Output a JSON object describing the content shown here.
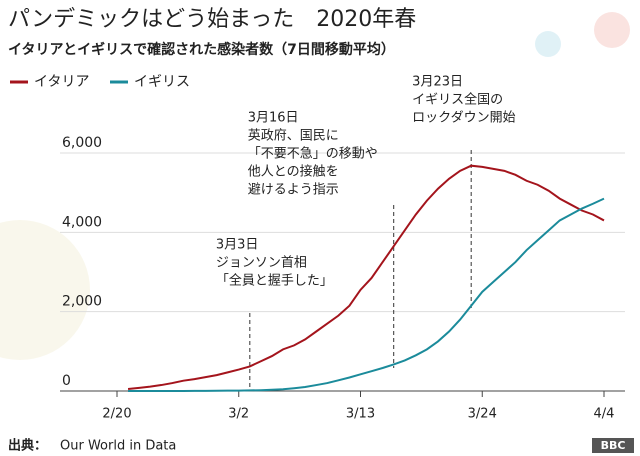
{
  "chart_data": {
    "type": "line",
    "title": "パンデミックはどう始まった　2020年春",
    "subtitle": "イタリアとイギリスで確認された感染者数（7日間移動平均）",
    "x": [
      "2/21",
      "2/22",
      "2/23",
      "2/24",
      "2/25",
      "2/26",
      "2/27",
      "2/28",
      "2/29",
      "3/1",
      "3/2",
      "3/3",
      "3/4",
      "3/5",
      "3/6",
      "3/7",
      "3/8",
      "3/9",
      "3/10",
      "3/11",
      "3/12",
      "3/13",
      "3/14",
      "3/15",
      "3/16",
      "3/17",
      "3/18",
      "3/19",
      "3/20",
      "3/21",
      "3/22",
      "3/23",
      "3/24",
      "3/25",
      "3/26",
      "3/27",
      "3/28",
      "3/29",
      "3/30",
      "3/31",
      "4/1",
      "4/2",
      "4/3",
      "4/4"
    ],
    "series": [
      {
        "name": "イタリア",
        "color": "#a4141c",
        "values": [
          50,
          80,
          110,
          150,
          200,
          260,
          300,
          350,
          400,
          470,
          540,
          620,
          750,
          880,
          1050,
          1150,
          1300,
          1500,
          1700,
          1900,
          2150,
          2550,
          2850,
          3250,
          3650,
          4050,
          4450,
          4800,
          5100,
          5350,
          5550,
          5680,
          5650,
          5600,
          5550,
          5450,
          5300,
          5200,
          5050,
          4850,
          4700,
          4550,
          4450,
          4300
        ]
      },
      {
        "name": "イギリス",
        "color": "#1b8b9b",
        "values": [
          0,
          0,
          0,
          0,
          0,
          1,
          2,
          3,
          5,
          8,
          10,
          15,
          20,
          30,
          45,
          70,
          100,
          150,
          200,
          270,
          340,
          420,
          500,
          580,
          670,
          770,
          900,
          1050,
          1250,
          1500,
          1800,
          2150,
          2500,
          2750,
          3000,
          3250,
          3550,
          3800,
          4050,
          4300,
          4450,
          4600,
          4720,
          4850
        ]
      }
    ],
    "xlim": [
      "2/20",
      "4/4"
    ],
    "xticks": [
      "2/20",
      "3/2",
      "3/13",
      "3/24",
      "4/4"
    ],
    "ylim": [
      0,
      6000
    ],
    "yticks": [
      0,
      {
        "value": 2000,
        "label": "2,000"
      },
      {
        "value": 4000,
        "label": "4,000"
      },
      {
        "value": 6000,
        "label": "6,000"
      }
    ],
    "grid": true,
    "annotations": [
      {
        "x": "3/3",
        "lines": [
          "3月3日",
          "ジョンソン首相",
          "「全員と握手した」"
        ]
      },
      {
        "x": "3/16",
        "lines": [
          "3月16日",
          "英政府、国民に",
          "「不要不急」の移動や",
          "他人との接触を",
          "避けるよう指示"
        ]
      },
      {
        "x": "3/23",
        "lines": [
          "3月23日",
          "イギリス全国の",
          "ロックダウン開始"
        ]
      }
    ],
    "source_label": "出典：",
    "source": "Our World in Data",
    "logo": "BBC"
  }
}
